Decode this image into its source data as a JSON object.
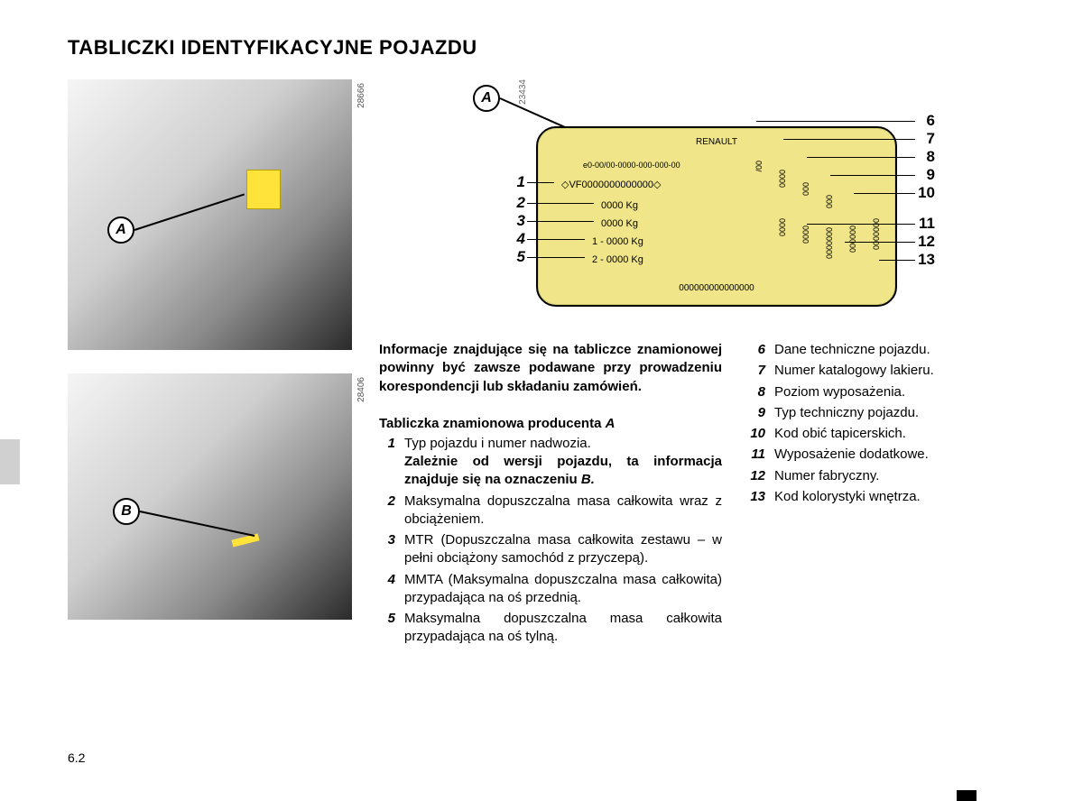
{
  "title": "TABLICZKI IDENTYFIKACYJNE POJAZDU",
  "photos": {
    "a": {
      "id": "28666",
      "callout": "A"
    },
    "b": {
      "id": "28406",
      "callout": "B"
    }
  },
  "plate": {
    "id": "23434",
    "callout": "A",
    "brand": "RENAULT",
    "type_approval": "e0-00/00-0000-000-000-00",
    "vin": "◇VF0000000000000◇",
    "mass1": "0000 Kg",
    "mass2": "0000 Kg",
    "axle1": "1 - 0000 Kg",
    "axle2": "2 - 0000 Kg",
    "serial": "000000000000000",
    "fill_color": "#f0e689",
    "border_color": "#000000",
    "left_numbers": [
      "1",
      "2",
      "3",
      "4",
      "5"
    ],
    "right_numbers": [
      "6",
      "7",
      "8",
      "9",
      "10",
      "11",
      "12",
      "13"
    ],
    "col2_samples": [
      "/00",
      "0000",
      "0000",
      "000",
      "0000",
      "000",
      "0000000",
      "000000",
      "0000000"
    ]
  },
  "intro": "Informacje znajdujące się na tabliczce znamionowej powinny być zawsze podawane przy prowadzeniu korespondencji lub składaniu zamówień.",
  "subhead_prefix": "Tabliczka znamionowa producenta ",
  "subhead_letter": "A",
  "defs_left": [
    {
      "n": "1",
      "t": "Typ pojazdu i numer nadwozia.",
      "extra_bold": "Zależnie od wersji pojazdu, ta informacja znajduje się na oznaczeniu ",
      "extra_letter": "B."
    },
    {
      "n": "2",
      "t": "Maksymalna dopuszczalna masa całkowita wraz z obciążeniem."
    },
    {
      "n": "3",
      "t": "MTR (Dopuszczalna masa całkowita zestawu – w pełni obciążony samochód z przyczepą)."
    },
    {
      "n": "4",
      "t": "MMTA (Maksymalna dopuszczalna masa całkowita) przypadająca na oś przednią."
    },
    {
      "n": "5",
      "t": "Maksymalna dopuszczalna masa całkowita przypadająca na oś tylną."
    }
  ],
  "defs_right": [
    {
      "n": "6",
      "t": "Dane techniczne pojazdu."
    },
    {
      "n": "7",
      "t": "Numer katalogowy lakieru."
    },
    {
      "n": "8",
      "t": "Poziom wyposażenia."
    },
    {
      "n": "9",
      "t": "Typ techniczny pojazdu."
    },
    {
      "n": "10",
      "t": "Kod obić tapicerskich."
    },
    {
      "n": "11",
      "t": "Wyposażenie dodatkowe."
    },
    {
      "n": "12",
      "t": "Numer fabryczny."
    },
    {
      "n": "13",
      "t": "Kod kolorystyki wnętrza."
    }
  ],
  "page_number": "6.2"
}
